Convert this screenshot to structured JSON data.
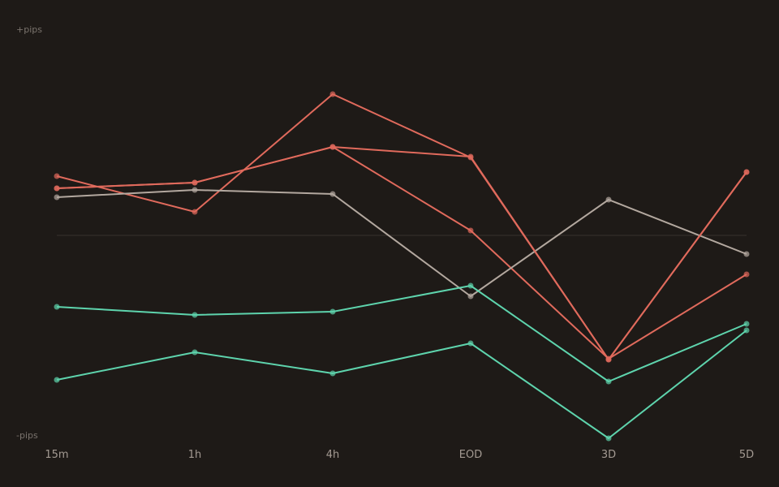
{
  "chart_data": {
    "type": "line",
    "y_top_label": "+pips",
    "y_bottom_label": "-pips",
    "categories": [
      "15m",
      "1h",
      "4h",
      "EOD",
      "3D",
      "5D"
    ],
    "ylim": [
      -250,
      250
    ],
    "zero_line": true,
    "grid": false,
    "legend": "none",
    "series": [
      {
        "color": "#e06a5c",
        "values": [
          73,
          29,
          174,
          96,
          -153,
          78
        ]
      },
      {
        "color": "#e06a5c",
        "values": [
          58,
          65,
          109,
          6,
          -152,
          -48
        ]
      },
      {
        "color": "#b3a89f",
        "values": [
          47,
          56,
          51,
          -75,
          44,
          -23
        ]
      },
      {
        "color": "#e06a5c",
        "values": [
          58,
          65,
          109,
          97,
          -153,
          78
        ]
      },
      {
        "color": "#5ed4ad",
        "values": [
          -88,
          -98,
          -94,
          -62,
          -180,
          -109
        ]
      },
      {
        "color": "#5ed4ad",
        "values": [
          -178,
          -144,
          -170,
          -133,
          -250,
          -117
        ]
      }
    ]
  }
}
